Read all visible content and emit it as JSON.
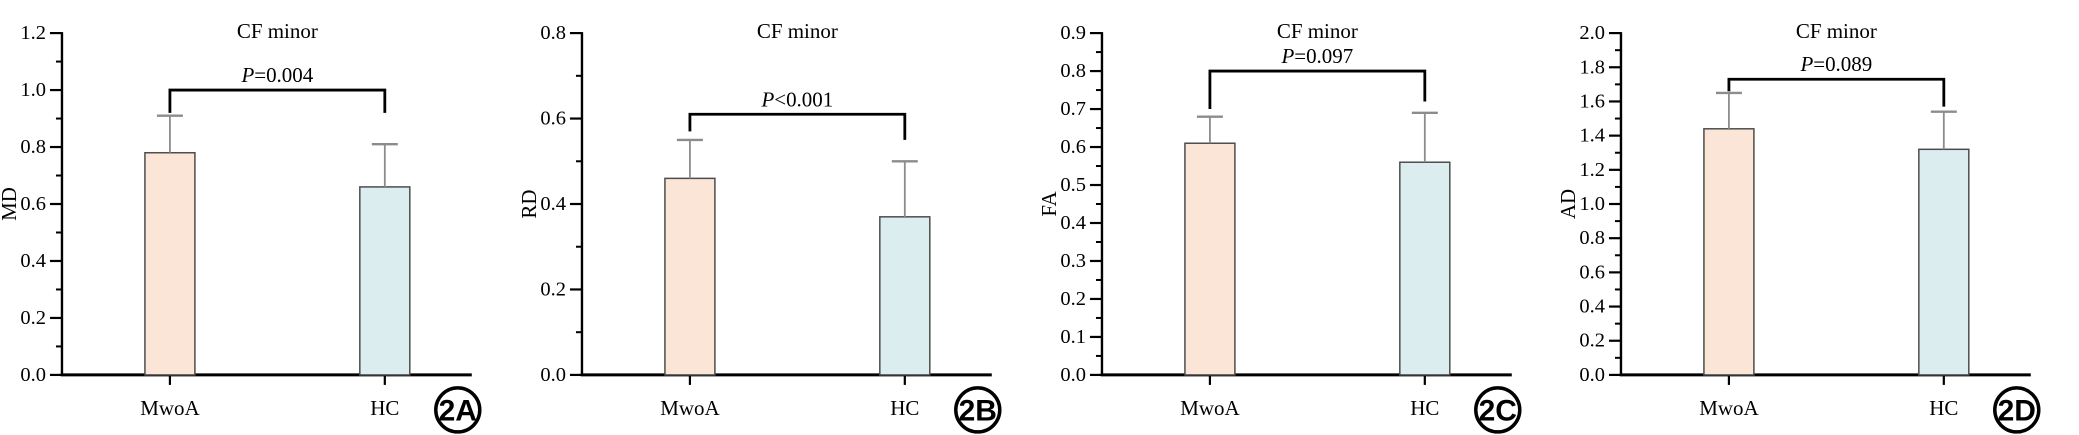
{
  "figure": {
    "background": "#ffffff",
    "theme": {
      "bar_fill_colors": {
        "MwoA": "#fbe5d6",
        "HC": "#dcedef"
      },
      "bar_border_color": "#4d4d4d",
      "error_bar_color": "#8c8c8c",
      "bracket_color": "#000000",
      "axis_color": "#000000",
      "text_color": "#000000",
      "badge_ring_color": "#000000",
      "badge_fill_color": "#ffffff"
    }
  },
  "chart_data": [
    {
      "type": "bar",
      "panel_label": "2A",
      "title": "CF minor",
      "p_symbol": "P",
      "p_rest": "=0.004",
      "ylabel": "MD",
      "xlabel": "",
      "ylim": [
        0,
        1.2
      ],
      "ytick_step": 0.2,
      "grid": false,
      "legend": false,
      "categories": [
        "MwoA",
        "HC"
      ],
      "values": [
        0.78,
        0.66
      ],
      "error_upper": [
        0.91,
        0.81
      ],
      "bracket": {
        "y": 1.0,
        "left_end": 0.92,
        "right_end": 0.92
      }
    },
    {
      "type": "bar",
      "panel_label": "2B",
      "title": "CF minor",
      "p_symbol": "P",
      "p_rest": "<0.001",
      "ylabel": "RD",
      "xlabel": "",
      "ylim": [
        0,
        0.8
      ],
      "ytick_step": 0.2,
      "grid": false,
      "legend": false,
      "categories": [
        "MwoA",
        "HC"
      ],
      "values": [
        0.46,
        0.37
      ],
      "error_upper": [
        0.55,
        0.5
      ],
      "bracket": {
        "y": 0.61,
        "left_end": 0.57,
        "right_end": 0.55
      }
    },
    {
      "type": "bar",
      "panel_label": "2C",
      "title": "CF minor",
      "p_symbol": "P",
      "p_rest": "=0.097",
      "ylabel": "FA",
      "xlabel": "",
      "ylim": [
        0,
        0.9
      ],
      "ytick_step": 0.1,
      "grid": false,
      "legend": false,
      "categories": [
        "MwoA",
        "HC"
      ],
      "values": [
        0.61,
        0.56
      ],
      "error_upper": [
        0.68,
        0.69
      ],
      "bracket": {
        "y": 0.8,
        "left_end": 0.7,
        "right_end": 0.72
      }
    },
    {
      "type": "bar",
      "panel_label": "2D",
      "title": "CF minor",
      "p_symbol": "P",
      "p_rest": "=0.089",
      "ylabel": "AD",
      "xlabel": "",
      "ylim": [
        0,
        2.0
      ],
      "ytick_step": 0.2,
      "grid": false,
      "legend": false,
      "categories": [
        "MwoA",
        "HC"
      ],
      "values": [
        1.44,
        1.32
      ],
      "error_upper": [
        1.65,
        1.54
      ],
      "bracket": {
        "y": 1.73,
        "left_end": 1.66,
        "right_end": 1.57
      }
    }
  ]
}
